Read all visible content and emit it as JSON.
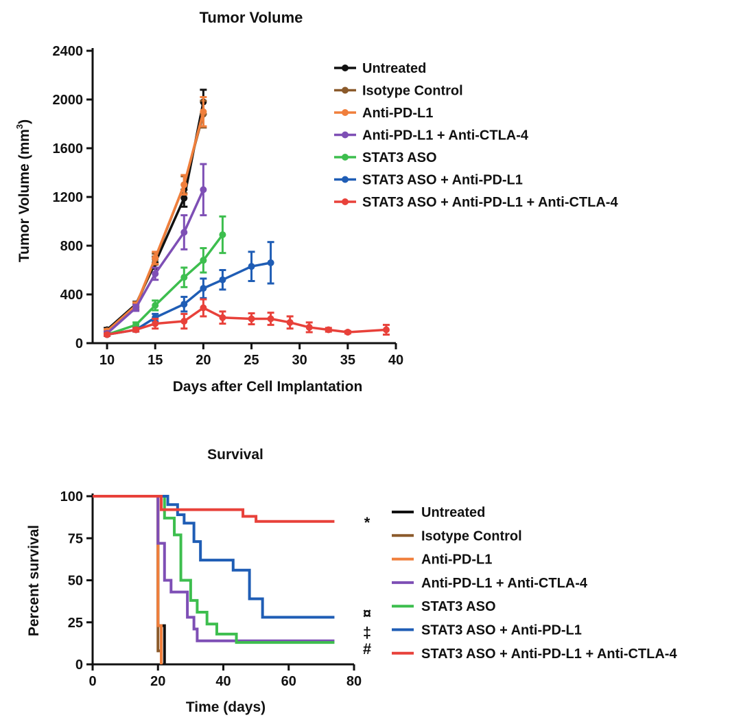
{
  "colors": {
    "untreated": "#111111",
    "isotype": "#8B5A2B",
    "antipdl1": "#F07F3C",
    "combo": "#7E4FB5",
    "stat3": "#3DBE4E",
    "stat3pdl1": "#1F5DB5",
    "triple": "#E8413A"
  },
  "chart_data": [
    {
      "type": "line",
      "title": "Tumor Volume",
      "xlabel": "Days after Cell Implantation",
      "ylabel_main": "Tumor Volume (mm",
      "ylabel_sup": "3",
      "ylabel_close": ")",
      "xlim": [
        8.5,
        40
      ],
      "ylim": [
        0,
        2400
      ],
      "xticks": [
        10,
        15,
        20,
        25,
        30,
        35,
        40
      ],
      "yticks": [
        0,
        400,
        800,
        1200,
        1600,
        2000,
        2400
      ],
      "legend_position": "top-right",
      "series": [
        {
          "name": "Untreated",
          "color_key": "untreated",
          "x": [
            10,
            13,
            15,
            18,
            20
          ],
          "y": [
            110,
            320,
            660,
            1190,
            1980
          ],
          "err": [
            15,
            20,
            50,
            70,
            100
          ]
        },
        {
          "name": "Isotype Control",
          "color_key": "isotype",
          "x": [
            10,
            13,
            15,
            18,
            20
          ],
          "y": [
            100,
            300,
            690,
            1300,
            1880
          ],
          "err": [
            15,
            25,
            45,
            70,
            110
          ]
        },
        {
          "name": "Anti-PD-L1",
          "color_key": "antipdl1",
          "x": [
            10,
            13,
            15,
            18,
            20
          ],
          "y": [
            100,
            310,
            700,
            1300,
            1900
          ],
          "err": [
            15,
            25,
            50,
            80,
            120
          ]
        },
        {
          "name": "Anti-PD-L1 + Anti-CTLA-4",
          "color_key": "combo",
          "x": [
            10,
            13,
            15,
            18,
            20
          ],
          "y": [
            80,
            290,
            570,
            910,
            1260
          ],
          "err": [
            15,
            25,
            50,
            140,
            210
          ]
        },
        {
          "name": "STAT3 ASO",
          "color_key": "stat3",
          "x": [
            10,
            13,
            15,
            18,
            20,
            22
          ],
          "y": [
            70,
            150,
            310,
            540,
            680,
            890
          ],
          "err": [
            10,
            20,
            40,
            80,
            100,
            150
          ]
        },
        {
          "name": "STAT3 ASO + Anti-PD-L1",
          "color_key": "stat3pdl1",
          "x": [
            10,
            13,
            15,
            18,
            20,
            22,
            25,
            27
          ],
          "y": [
            70,
            110,
            210,
            320,
            450,
            520,
            630,
            660
          ],
          "err": [
            10,
            15,
            30,
            60,
            80,
            80,
            120,
            170
          ]
        },
        {
          "name": "STAT3 ASO + Anti-PD-L1 + Anti-CTLA-4",
          "color_key": "triple",
          "x": [
            10,
            13,
            15,
            18,
            20,
            22,
            25,
            27,
            29,
            31,
            33,
            35,
            39
          ],
          "y": [
            70,
            110,
            160,
            180,
            290,
            210,
            200,
            200,
            170,
            130,
            110,
            90,
            110
          ],
          "err": [
            10,
            15,
            40,
            60,
            70,
            50,
            45,
            50,
            50,
            40,
            15,
            10,
            40
          ]
        }
      ]
    },
    {
      "type": "line",
      "title": "Survival",
      "xlabel": "Time (days)",
      "ylabel": "Percent survival",
      "xlim": [
        0,
        80
      ],
      "ylim": [
        0,
        100
      ],
      "xticks": [
        0,
        20,
        40,
        60,
        80
      ],
      "yticks": [
        0,
        25,
        50,
        75,
        100
      ],
      "legend_position": "right",
      "series": [
        {
          "name": "Untreated",
          "color_key": "untreated",
          "steps": [
            [
              0,
              100
            ],
            [
              20,
              100
            ],
            [
              20,
              23
            ],
            [
              22,
              23
            ],
            [
              22,
              0
            ]
          ]
        },
        {
          "name": "Isotype Control",
          "color_key": "isotype",
          "steps": [
            [
              0,
              100
            ],
            [
              20,
              100
            ],
            [
              20,
              8
            ],
            [
              21,
              8
            ],
            [
              21,
              0
            ]
          ]
        },
        {
          "name": "Anti-PD-L1",
          "color_key": "antipdl1",
          "steps": [
            [
              0,
              100
            ],
            [
              20,
              100
            ],
            [
              20,
              23
            ],
            [
              21,
              23
            ],
            [
              21,
              0
            ]
          ]
        },
        {
          "name": "Anti-PD-L1 + Anti-CTLA-4",
          "color_key": "combo",
          "steps": [
            [
              0,
              100
            ],
            [
              20,
              100
            ],
            [
              20,
              72
            ],
            [
              22,
              72
            ],
            [
              22,
              50
            ],
            [
              24,
              50
            ],
            [
              24,
              43
            ],
            [
              29,
              43
            ],
            [
              29,
              28
            ],
            [
              31,
              28
            ],
            [
              31,
              21
            ],
            [
              32,
              21
            ],
            [
              32,
              14
            ],
            [
              74,
              14
            ]
          ]
        },
        {
          "name": "STAT3 ASO",
          "color_key": "stat3",
          "steps": [
            [
              0,
              100
            ],
            [
              22,
              100
            ],
            [
              22,
              87
            ],
            [
              25,
              87
            ],
            [
              25,
              77
            ],
            [
              27,
              77
            ],
            [
              27,
              50
            ],
            [
              30,
              50
            ],
            [
              30,
              38
            ],
            [
              32,
              38
            ],
            [
              32,
              31
            ],
            [
              35,
              31
            ],
            [
              35,
              24
            ],
            [
              38,
              24
            ],
            [
              38,
              18
            ],
            [
              44,
              18
            ],
            [
              44,
              13
            ],
            [
              74,
              13
            ]
          ]
        },
        {
          "name": "STAT3 ASO + Anti-PD-L1",
          "color_key": "stat3pdl1",
          "steps": [
            [
              0,
              100
            ],
            [
              23,
              100
            ],
            [
              23,
              95
            ],
            [
              26,
              95
            ],
            [
              26,
              89
            ],
            [
              28,
              89
            ],
            [
              28,
              84
            ],
            [
              31,
              84
            ],
            [
              31,
              73
            ],
            [
              33,
              73
            ],
            [
              33,
              62
            ],
            [
              43,
              62
            ],
            [
              43,
              56
            ],
            [
              48,
              56
            ],
            [
              48,
              39
            ],
            [
              52,
              39
            ],
            [
              52,
              28
            ],
            [
              74,
              28
            ]
          ]
        },
        {
          "name": "STAT3 ASO + Anti-PD-L1 + Anti-CTLA-4",
          "color_key": "triple",
          "steps": [
            [
              0,
              100
            ],
            [
              21,
              100
            ],
            [
              21,
              92
            ],
            [
              46,
              92
            ],
            [
              46,
              88
            ],
            [
              50,
              88
            ],
            [
              50,
              85
            ],
            [
              74,
              85
            ]
          ]
        }
      ],
      "annotations": [
        {
          "text": "*",
          "series": "STAT3 ASO + Anti-PD-L1 + Anti-CTLA-4"
        },
        {
          "text": "¤",
          "series": "STAT3 ASO + Anti-PD-L1"
        },
        {
          "text": "‡",
          "series": "Anti-PD-L1 + Anti-CTLA-4"
        },
        {
          "text": "#",
          "series": "STAT3 ASO"
        }
      ]
    }
  ]
}
